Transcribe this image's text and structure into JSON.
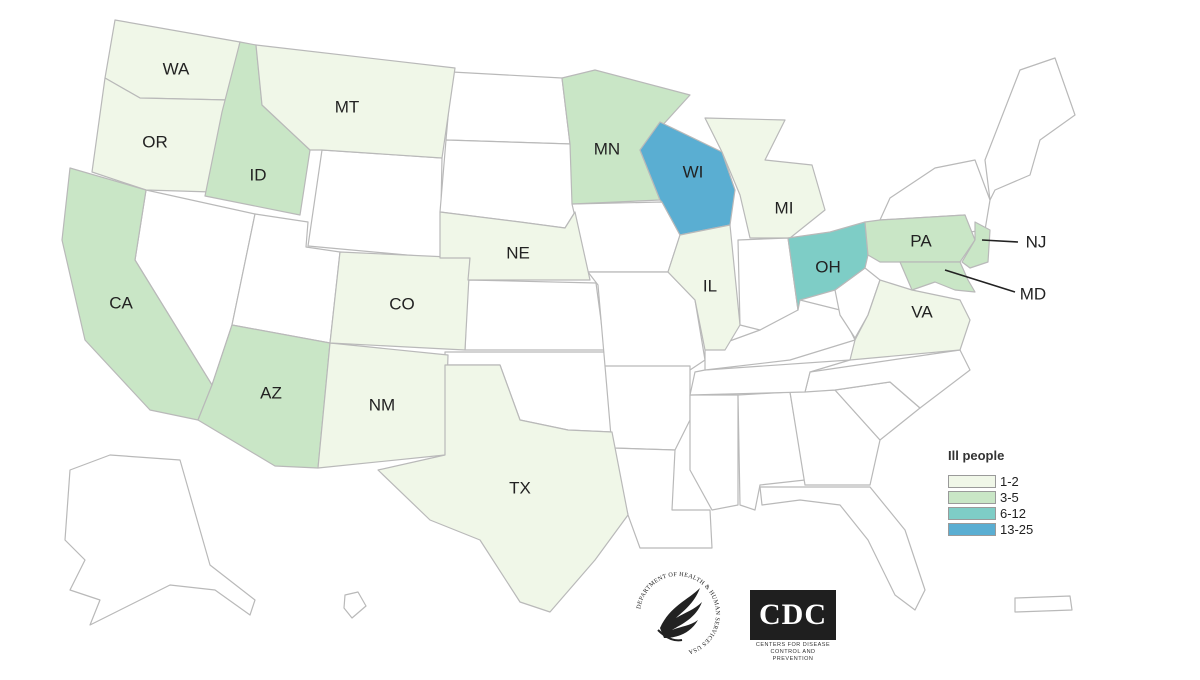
{
  "colors": {
    "none": "#ffffff",
    "bin_1_2": "#f0f7e8",
    "bin_3_5": "#c9e6c6",
    "bin_6_12": "#7ecdc6",
    "bin_13_25": "#5aaed2",
    "border": "#b9b9b9"
  },
  "legend": {
    "title": "Ill people",
    "items": [
      {
        "label": "1-2",
        "color": "#f0f7e8"
      },
      {
        "label": "3-5",
        "color": "#c9e6c6"
      },
      {
        "label": "6-12",
        "color": "#7ecdc6"
      },
      {
        "label": "13-25",
        "color": "#5aaed2"
      }
    ]
  },
  "states": {
    "WA": {
      "label": "WA",
      "bin": "1-2"
    },
    "OR": {
      "label": "OR",
      "bin": "1-2"
    },
    "ID": {
      "label": "ID",
      "bin": "3-5"
    },
    "MT": {
      "label": "MT",
      "bin": "1-2"
    },
    "CA": {
      "label": "CA",
      "bin": "3-5"
    },
    "AZ": {
      "label": "AZ",
      "bin": "3-5"
    },
    "NM": {
      "label": "NM",
      "bin": "1-2"
    },
    "CO": {
      "label": "CO",
      "bin": "1-2"
    },
    "NE": {
      "label": "NE",
      "bin": "1-2"
    },
    "TX": {
      "label": "TX",
      "bin": "1-2"
    },
    "MN": {
      "label": "MN",
      "bin": "3-5"
    },
    "WI": {
      "label": "WI",
      "bin": "13-25"
    },
    "IL": {
      "label": "IL",
      "bin": "1-2"
    },
    "MI": {
      "label": "MI",
      "bin": "1-2"
    },
    "OH": {
      "label": "OH",
      "bin": "6-12"
    },
    "PA": {
      "label": "PA",
      "bin": "3-5"
    },
    "VA": {
      "label": "VA",
      "bin": "1-2"
    },
    "NJ": {
      "label": "NJ",
      "bin": "3-5"
    },
    "MD": {
      "label": "MD",
      "bin": "3-5"
    }
  },
  "logos": {
    "hhs": "DEPARTMENT OF HEALTH & HUMAN SERVICES USA",
    "cdc": "CDC",
    "cdc_sub": "CENTERS FOR DISEASE CONTROL AND PREVENTION"
  }
}
